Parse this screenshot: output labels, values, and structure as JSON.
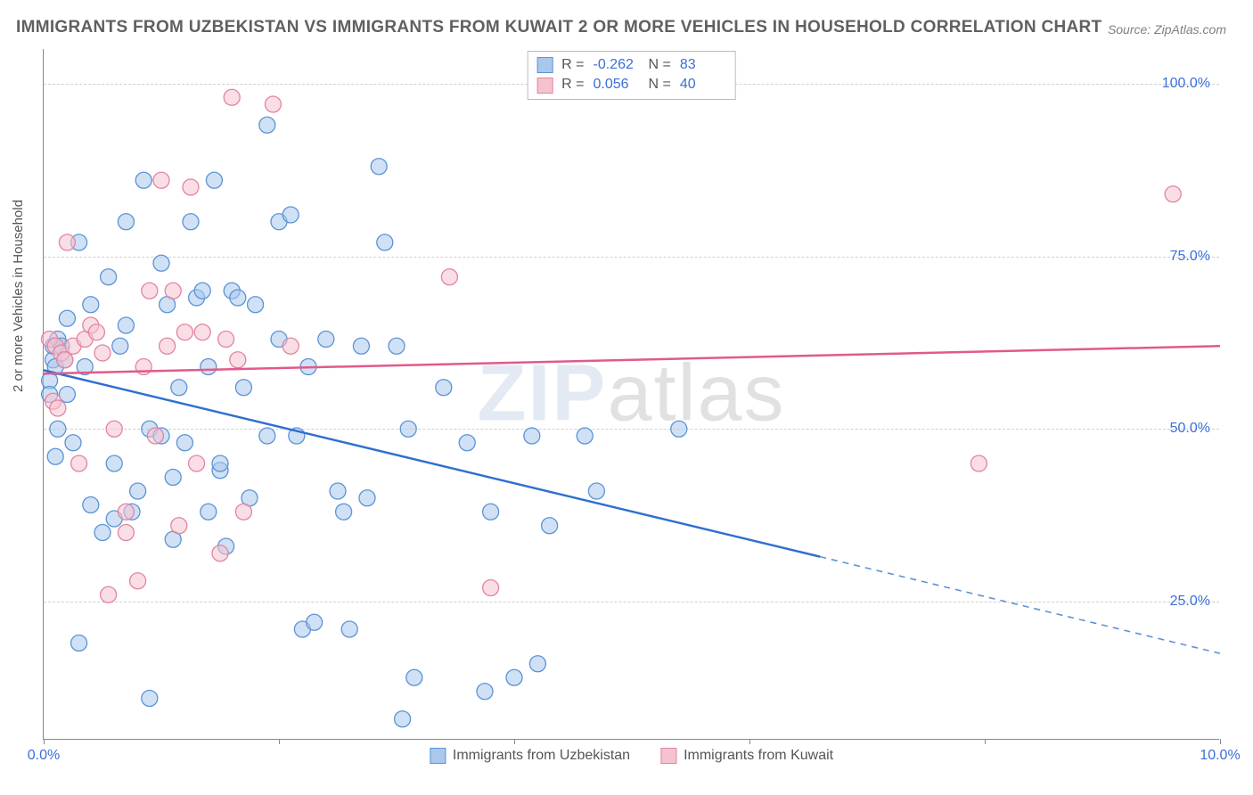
{
  "title": "IMMIGRANTS FROM UZBEKISTAN VS IMMIGRANTS FROM KUWAIT 2 OR MORE VEHICLES IN HOUSEHOLD CORRELATION CHART",
  "source": "Source: ZipAtlas.com",
  "watermark": {
    "bold": "ZIP",
    "thin": "atlas"
  },
  "chart": {
    "type": "scatter",
    "ylabel": "2 or more Vehicles in Household",
    "xlim": [
      0,
      10
    ],
    "ylim": [
      5,
      105
    ],
    "x_ticks": [
      0,
      2,
      4,
      6,
      8,
      10
    ],
    "x_tick_labels": {
      "0": "0.0%",
      "10": "10.0%"
    },
    "y_gridlines": [
      25,
      50,
      75,
      100
    ],
    "y_tick_labels": {
      "25": "25.0%",
      "50": "50.0%",
      "75": "75.0%",
      "100": "100.0%"
    },
    "background_color": "#ffffff",
    "grid_color": "#d0d0d0",
    "marker_radius": 9,
    "marker_opacity": 0.55,
    "line_width": 2.5,
    "series": [
      {
        "name": "Immigrants from Uzbekistan",
        "color_fill": "#a9c8ec",
        "color_stroke": "#5b94d6",
        "line_color": "#2f6fd0",
        "R": "-0.262",
        "N": "83",
        "regression": {
          "x1": 0,
          "y1": 58.5,
          "x2": 6.6,
          "y2": 31.5,
          "extrapolate_x2": 10,
          "extrapolate_y2": 17.5
        },
        "points": [
          [
            0.05,
            57
          ],
          [
            0.05,
            55
          ],
          [
            0.08,
            60
          ],
          [
            0.08,
            62
          ],
          [
            0.1,
            59
          ],
          [
            0.1,
            46
          ],
          [
            0.12,
            63
          ],
          [
            0.12,
            50
          ],
          [
            0.15,
            62
          ],
          [
            0.18,
            60
          ],
          [
            0.2,
            55
          ],
          [
            0.2,
            66
          ],
          [
            0.25,
            48
          ],
          [
            0.3,
            77
          ],
          [
            0.3,
            19
          ],
          [
            0.35,
            59
          ],
          [
            0.4,
            39
          ],
          [
            0.4,
            68
          ],
          [
            0.5,
            35
          ],
          [
            0.55,
            72
          ],
          [
            0.6,
            45
          ],
          [
            0.6,
            37
          ],
          [
            0.65,
            62
          ],
          [
            0.7,
            65
          ],
          [
            0.7,
            80
          ],
          [
            0.75,
            38
          ],
          [
            0.8,
            41
          ],
          [
            0.85,
            86
          ],
          [
            0.9,
            50
          ],
          [
            0.9,
            11
          ],
          [
            1.0,
            74
          ],
          [
            1.0,
            49
          ],
          [
            1.05,
            68
          ],
          [
            1.1,
            43
          ],
          [
            1.1,
            34
          ],
          [
            1.15,
            56
          ],
          [
            1.2,
            48
          ],
          [
            1.25,
            80
          ],
          [
            1.3,
            69
          ],
          [
            1.35,
            70
          ],
          [
            1.4,
            59
          ],
          [
            1.4,
            38
          ],
          [
            1.45,
            86
          ],
          [
            1.5,
            44
          ],
          [
            1.5,
            45
          ],
          [
            1.55,
            33
          ],
          [
            1.6,
            70
          ],
          [
            1.65,
            69
          ],
          [
            1.7,
            56
          ],
          [
            1.75,
            40
          ],
          [
            1.8,
            68
          ],
          [
            1.9,
            94
          ],
          [
            1.9,
            49
          ],
          [
            2.0,
            80
          ],
          [
            2.0,
            63
          ],
          [
            2.1,
            81
          ],
          [
            2.15,
            49
          ],
          [
            2.2,
            21
          ],
          [
            2.25,
            59
          ],
          [
            2.3,
            22
          ],
          [
            2.4,
            63
          ],
          [
            2.5,
            41
          ],
          [
            2.55,
            38
          ],
          [
            2.6,
            21
          ],
          [
            2.7,
            62
          ],
          [
            2.75,
            40
          ],
          [
            2.85,
            88
          ],
          [
            2.9,
            77
          ],
          [
            3.0,
            62
          ],
          [
            3.05,
            8
          ],
          [
            3.1,
            50
          ],
          [
            3.15,
            14
          ],
          [
            3.4,
            56
          ],
          [
            3.6,
            48
          ],
          [
            3.75,
            12
          ],
          [
            3.8,
            38
          ],
          [
            4.0,
            14
          ],
          [
            4.15,
            49
          ],
          [
            4.2,
            16
          ],
          [
            4.3,
            36
          ],
          [
            4.6,
            49
          ],
          [
            4.7,
            41
          ],
          [
            5.4,
            50
          ]
        ]
      },
      {
        "name": "Immigrants from Kuwait",
        "color_fill": "#f5c3cf",
        "color_stroke": "#e285a0",
        "line_color": "#e05a8a",
        "R": "0.056",
        "N": "40",
        "regression": {
          "x1": 0,
          "y1": 58.0,
          "x2": 10,
          "y2": 62.0
        },
        "points": [
          [
            0.05,
            63
          ],
          [
            0.08,
            54
          ],
          [
            0.1,
            62
          ],
          [
            0.12,
            53
          ],
          [
            0.15,
            61
          ],
          [
            0.18,
            60
          ],
          [
            0.2,
            77
          ],
          [
            0.25,
            62
          ],
          [
            0.3,
            45
          ],
          [
            0.35,
            63
          ],
          [
            0.4,
            65
          ],
          [
            0.45,
            64
          ],
          [
            0.5,
            61
          ],
          [
            0.55,
            26
          ],
          [
            0.6,
            50
          ],
          [
            0.7,
            35
          ],
          [
            0.7,
            38
          ],
          [
            0.8,
            28
          ],
          [
            0.85,
            59
          ],
          [
            0.9,
            70
          ],
          [
            0.95,
            49
          ],
          [
            1.0,
            86
          ],
          [
            1.05,
            62
          ],
          [
            1.1,
            70
          ],
          [
            1.15,
            36
          ],
          [
            1.2,
            64
          ],
          [
            1.25,
            85
          ],
          [
            1.3,
            45
          ],
          [
            1.35,
            64
          ],
          [
            1.5,
            32
          ],
          [
            1.55,
            63
          ],
          [
            1.6,
            98
          ],
          [
            1.65,
            60
          ],
          [
            1.7,
            38
          ],
          [
            1.95,
            97
          ],
          [
            2.1,
            62
          ],
          [
            3.45,
            72
          ],
          [
            3.8,
            27
          ],
          [
            7.95,
            45
          ],
          [
            9.6,
            84
          ]
        ]
      }
    ],
    "legend_bottom": [
      {
        "label": "Immigrants from Uzbekistan",
        "fill": "#a9c8ec",
        "stroke": "#5b94d6"
      },
      {
        "label": "Immigrants from Kuwait",
        "fill": "#f5c3cf",
        "stroke": "#e285a0"
      }
    ]
  }
}
